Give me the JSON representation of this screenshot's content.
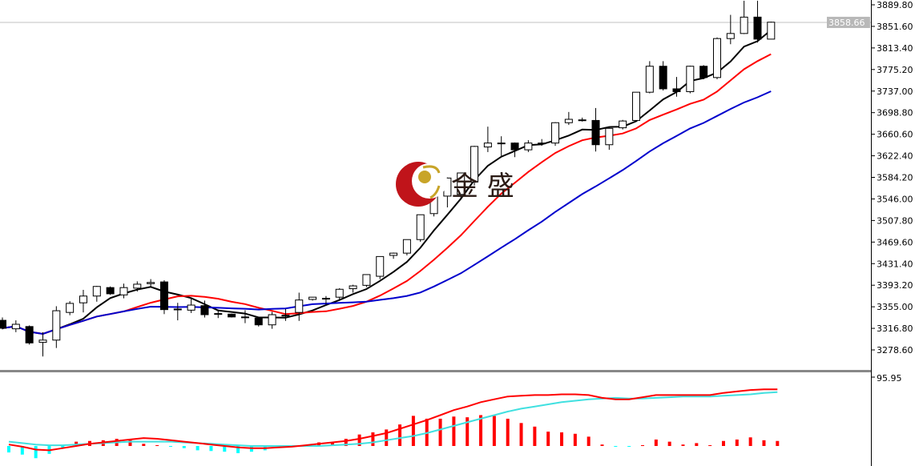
{
  "logo": {
    "text": "金 盛"
  },
  "chart_data": [
    {
      "type": "candlestick",
      "title": "",
      "ylim": [
        3260,
        3898
      ],
      "y_ticks": [
        "3889.80",
        "3851.60",
        "3813.40",
        "3775.20",
        "3737.00",
        "3698.80",
        "3660.60",
        "3622.40",
        "3584.20",
        "3546.00",
        "3507.80",
        "3469.60",
        "3431.40",
        "3393.20",
        "3355.00",
        "3316.80",
        "3278.60"
      ],
      "current_price": "3858.66",
      "colors": {
        "bull_fill": "#ffffff",
        "bear_fill": "#000000",
        "ma_fast": "#000000",
        "ma_mid": "#ff0000",
        "ma_slow": "#0000cc",
        "price_line": "#c0c0c0"
      },
      "moving_averages": [
        {
          "period": 5,
          "color": "#000000"
        },
        {
          "period": 10,
          "color": "#ff0000"
        },
        {
          "period": 20,
          "color": "#0000cc"
        }
      ],
      "ohlc": [
        [
          3331,
          3336,
          3315,
          3317
        ],
        [
          3316,
          3331,
          3310,
          3324
        ],
        [
          3320,
          3322,
          3288,
          3291
        ],
        [
          3292,
          3310,
          3267,
          3296
        ],
        [
          3296,
          3356,
          3282,
          3348
        ],
        [
          3345,
          3365,
          3340,
          3361
        ],
        [
          3362,
          3385,
          3345,
          3374
        ],
        [
          3374,
          3392,
          3364,
          3391
        ],
        [
          3389,
          3391,
          3376,
          3378
        ],
        [
          3376,
          3396,
          3370,
          3389
        ],
        [
          3388,
          3400,
          3382,
          3395
        ],
        [
          3396,
          3404,
          3390,
          3398
        ],
        [
          3399,
          3402,
          3342,
          3350
        ],
        [
          3351,
          3362,
          3331,
          3351
        ],
        [
          3349,
          3370,
          3344,
          3358
        ],
        [
          3357,
          3366,
          3336,
          3341
        ],
        [
          3343,
          3350,
          3335,
          3342
        ],
        [
          3342,
          3343,
          3336,
          3337
        ],
        [
          3337,
          3349,
          3326,
          3337
        ],
        [
          3335,
          3337,
          3320,
          3323
        ],
        [
          3323,
          3346,
          3316,
          3341
        ],
        [
          3340,
          3351,
          3330,
          3340
        ],
        [
          3345,
          3380,
          3330,
          3367
        ],
        [
          3368,
          3372,
          3366,
          3372
        ],
        [
          3369,
          3374,
          3360,
          3370
        ],
        [
          3372,
          3388,
          3366,
          3386
        ],
        [
          3387,
          3394,
          3380,
          3392
        ],
        [
          3393,
          3412,
          3390,
          3412
        ],
        [
          3409,
          3444,
          3404,
          3444
        ],
        [
          3446,
          3451,
          3440,
          3450
        ],
        [
          3450,
          3474,
          3446,
          3474
        ],
        [
          3474,
          3518,
          3470,
          3518
        ],
        [
          3520,
          3565,
          3515,
          3565
        ],
        [
          3551,
          3584,
          3531,
          3583
        ],
        [
          3554,
          3592,
          3545,
          3592
        ],
        [
          3576,
          3640,
          3570,
          3639
        ],
        [
          3638,
          3674,
          3629,
          3645
        ],
        [
          3645,
          3657,
          3622,
          3645
        ],
        [
          3645,
          3646,
          3620,
          3633
        ],
        [
          3633,
          3650,
          3629,
          3645
        ],
        [
          3645,
          3652,
          3640,
          3645
        ],
        [
          3645,
          3682,
          3640,
          3681
        ],
        [
          3681,
          3700,
          3677,
          3687
        ],
        [
          3686,
          3690,
          3683,
          3686
        ],
        [
          3685,
          3707,
          3630,
          3642
        ],
        [
          3642,
          3673,
          3633,
          3671
        ],
        [
          3672,
          3686,
          3669,
          3684
        ],
        [
          3685,
          3735,
          3683,
          3735
        ],
        [
          3735,
          3790,
          3733,
          3781
        ],
        [
          3781,
          3790,
          3738,
          3741
        ],
        [
          3741,
          3762,
          3727,
          3736
        ],
        [
          3736,
          3782,
          3733,
          3781
        ],
        [
          3781,
          3783,
          3758,
          3761
        ],
        [
          3761,
          3832,
          3758,
          3830
        ],
        [
          3830,
          3872,
          3820,
          3839
        ],
        [
          3839,
          3897,
          3838,
          3868
        ],
        [
          3868,
          3897,
          3823,
          3829
        ],
        [
          3829,
          3860,
          3829,
          3859
        ]
      ]
    },
    {
      "type": "macd",
      "y_ticks": [
        "95.95"
      ],
      "ylim_top": 95.95,
      "colors": {
        "hist_pos": "#ff0000",
        "hist_neg": "#00ffff",
        "main": "#ff0000",
        "signal": "#40e0e0"
      },
      "histogram": [
        -9,
        -12,
        -17,
        -11,
        -3,
        6,
        7,
        8,
        10,
        10,
        3,
        0.5,
        -1,
        -3,
        -6,
        -7,
        -8,
        -10,
        -8,
        -6,
        -1,
        0,
        1,
        5,
        5,
        10,
        16,
        19,
        23,
        30,
        42,
        38,
        38,
        41,
        40,
        43,
        42,
        38,
        32,
        27,
        20,
        19,
        17,
        13,
        2,
        -0.3,
        -1,
        1,
        9,
        6,
        2,
        4,
        1,
        7,
        9,
        12,
        8,
        7
      ],
      "main": [
        2,
        -1,
        -5,
        -6,
        -3,
        0,
        3,
        5,
        7,
        9,
        11,
        10,
        8,
        6,
        4,
        2,
        0,
        -2,
        -3,
        -3,
        -2,
        -1,
        1,
        3,
        5,
        7,
        10,
        14,
        18,
        24,
        30,
        36,
        43,
        50,
        55,
        61,
        65,
        69,
        70,
        71,
        71,
        72,
        72,
        71,
        67,
        65,
        65,
        68,
        71,
        71,
        71,
        71,
        71,
        74,
        76,
        78,
        79,
        79
      ],
      "signal": [
        6,
        4,
        2,
        1,
        1,
        2,
        3,
        4,
        5,
        6,
        6,
        6,
        6,
        5,
        4,
        3,
        2,
        1,
        0,
        0,
        0,
        0,
        0,
        0,
        1,
        2,
        3,
        5,
        8,
        11,
        14,
        18,
        23,
        28,
        33,
        38,
        43,
        48,
        52,
        55,
        58,
        61,
        63,
        65,
        66,
        67,
        66,
        66,
        67,
        68,
        69,
        69,
        69,
        70,
        71,
        72,
        74,
        75
      ]
    }
  ]
}
